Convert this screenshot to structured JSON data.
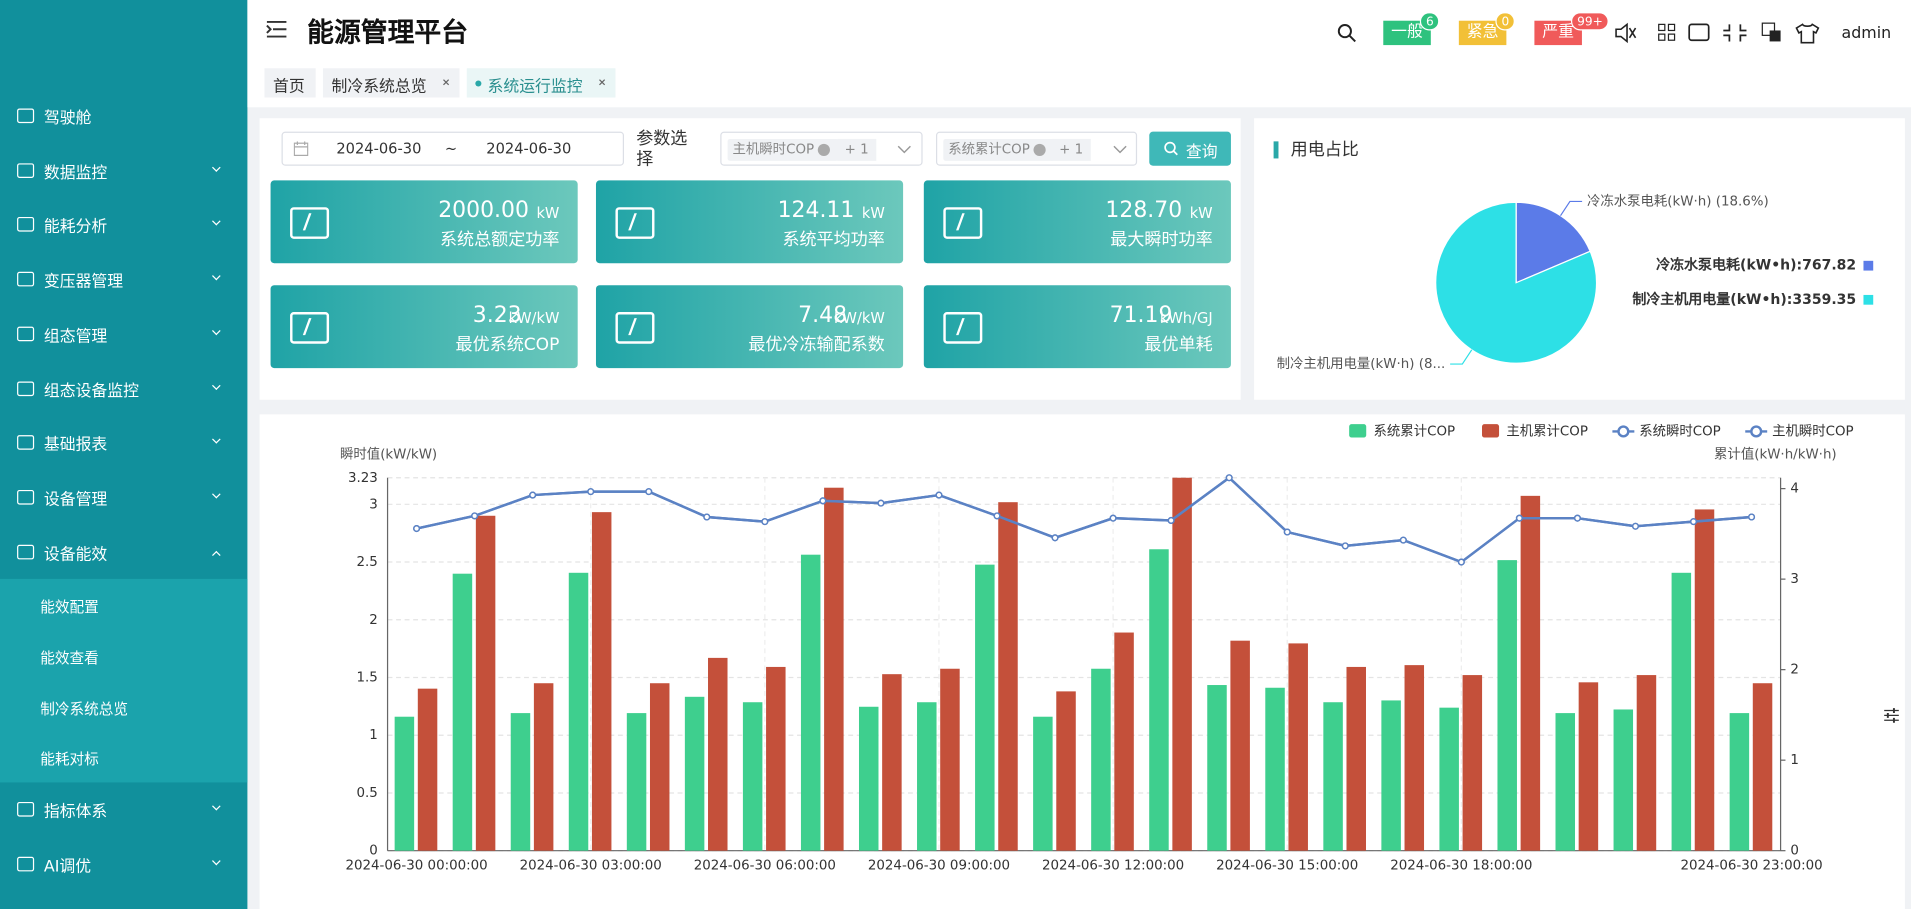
{
  "header": {
    "title": "能源管理平台",
    "user": "admin",
    "alerts": [
      {
        "label": "一般",
        "count": "6",
        "color": "#2ec27e"
      },
      {
        "label": "紧急",
        "count": "0",
        "color": "#f2c037"
      },
      {
        "label": "严重",
        "count": "99+",
        "color": "#f05a5a"
      }
    ]
  },
  "sidebar": {
    "items": [
      {
        "label": "驾驶舱",
        "expandable": false
      },
      {
        "label": "数据监控",
        "expandable": true
      },
      {
        "label": "能耗分析",
        "expandable": true
      },
      {
        "label": "变压器管理",
        "expandable": true
      },
      {
        "label": "组态管理",
        "expandable": true
      },
      {
        "label": "组态设备监控",
        "expandable": true
      },
      {
        "label": "基础报表",
        "expandable": true
      },
      {
        "label": "设备管理",
        "expandable": true
      },
      {
        "label": "设备能效",
        "expandable": true,
        "expanded": true,
        "children": [
          "能效配置",
          "能效查看",
          "制冷系统总览",
          "能耗对标"
        ]
      },
      {
        "label": "指标体系",
        "expandable": true
      },
      {
        "label": "AI调优",
        "expandable": true
      }
    ]
  },
  "tabs": [
    {
      "label": "首页",
      "closable": false
    },
    {
      "label": "制冷系统总览",
      "closable": true
    },
    {
      "label": "系统运行监控",
      "closable": true,
      "active": true
    }
  ],
  "filters": {
    "start_date": "2024-06-30",
    "separator": "~",
    "end_date": "2024-06-30",
    "param_label": "参数选择",
    "select1": {
      "tag": "主机瞬时COP",
      "more": "+ 1"
    },
    "select2": {
      "tag": "系统累计COP",
      "more": "+ 1"
    },
    "button": "查询"
  },
  "kpis": [
    {
      "value": "2000.00",
      "unit": "kW",
      "label": "系统总额定功率"
    },
    {
      "value": "124.11",
      "unit": "kW",
      "label": "系统平均功率"
    },
    {
      "value": "128.70",
      "unit": "kW",
      "label": "最大瞬时功率"
    },
    {
      "value": "3.23",
      "unit": "kW/kW",
      "label": "最优系统COP"
    },
    {
      "value": "7.48",
      "unit": "kW/kW",
      "label": "最优冷冻输配系数"
    },
    {
      "value": "71.19",
      "unit": "kWh/GJ",
      "label": "最优单耗"
    }
  ],
  "chart_data": [
    {
      "type": "pie",
      "title": "用电占比",
      "categories": [
        "冷冻水泵电耗(kW•h)",
        "制冷主机用电量(kW•h)"
      ],
      "values": [
        767.82,
        3359.35
      ],
      "colors": [
        "#5b7be8",
        "#2de0e6"
      ],
      "slice_labels": [
        "冷冻水泵电耗(kW·h) (18.6%)",
        "制冷主机用电量(kW·h) (8..."
      ],
      "legend_labels": [
        "冷冻水泵电耗(kW•h):767.82",
        "制冷主机用电量(kW•h):3359.35"
      ],
      "legend": "right"
    },
    {
      "type": "bar",
      "y_label": "瞬时值(kW/kW)",
      "y2_label": "累计值(kW·h/kW·h)",
      "legend": "top-right",
      "grid": true,
      "categories": [
        "2024-06-30 00:00:00",
        null,
        null,
        "2024-06-30 03:00:00",
        null,
        null,
        "2024-06-30 06:00:00",
        null,
        null,
        "2024-06-30 09:00:00",
        null,
        null,
        "2024-06-30 12:00:00",
        null,
        null,
        "2024-06-30 15:00:00",
        null,
        null,
        "2024-06-30 18:00:00",
        null,
        null,
        null,
        null,
        "2024-06-30 23:00:00"
      ],
      "ylim": [
        0,
        3.23
      ],
      "yticks": [
        0,
        0.5,
        1,
        1.5,
        2,
        2.5,
        3,
        3.23
      ],
      "y2lim": [
        0,
        4.12
      ],
      "y2ticks": [
        0,
        1,
        2,
        3,
        4
      ],
      "series": [
        {
          "name": "系统累计COP",
          "type": "bar",
          "axis": "y2",
          "color": "#3ecf8e",
          "values": [
            1.48,
            3.06,
            1.52,
            3.07,
            1.52,
            1.7,
            1.64,
            3.27,
            1.59,
            1.64,
            3.16,
            1.48,
            2.01,
            3.33,
            1.83,
            1.8,
            1.64,
            1.66,
            1.58,
            3.21,
            1.52,
            1.56,
            3.07,
            1.52
          ]
        },
        {
          "name": "主机累计COP",
          "type": "bar",
          "axis": "y2",
          "color": "#c4503a",
          "values": [
            1.79,
            3.7,
            1.85,
            3.74,
            1.85,
            2.13,
            2.03,
            4.01,
            1.95,
            2.01,
            3.85,
            1.76,
            2.41,
            4.12,
            2.32,
            2.29,
            2.03,
            2.05,
            1.94,
            3.92,
            1.86,
            1.94,
            3.77,
            1.85
          ]
        },
        {
          "name": "系统瞬时COP",
          "type": "line",
          "color": "#5b82c4",
          "values": [
            2.79,
            2.9,
            3.08,
            3.11,
            3.11,
            2.89,
            2.85,
            3.03,
            3.01,
            3.08,
            2.9,
            2.71,
            2.88,
            2.86,
            3.23,
            2.76,
            2.64,
            2.69,
            2.5,
            2.88,
            2.88,
            2.81,
            2.85,
            2.89
          ]
        },
        {
          "name": "主机瞬时COP",
          "type": "line",
          "color": "#5b82c4",
          "values": [
            2.79,
            2.9,
            3.08,
            3.11,
            3.11,
            2.89,
            2.85,
            3.03,
            3.01,
            3.08,
            2.9,
            2.71,
            2.88,
            2.86,
            3.23,
            2.76,
            2.64,
            2.69,
            2.5,
            2.88,
            2.88,
            2.81,
            2.85,
            2.89
          ]
        }
      ]
    }
  ]
}
